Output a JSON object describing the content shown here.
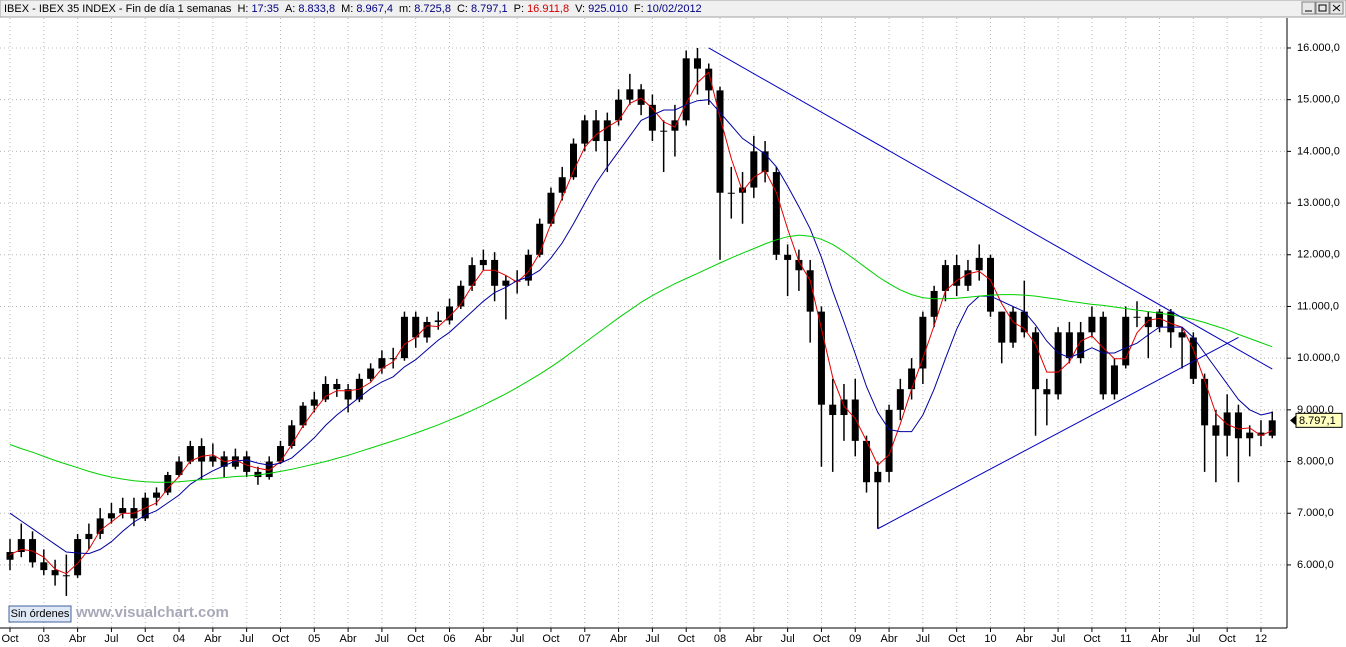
{
  "header": {
    "title": "IBEX - IBEX 35 INDEX - Fin de día 1 semanas",
    "fields": [
      {
        "label": "H:",
        "value": "17:35",
        "color": "#000080"
      },
      {
        "label": "A:",
        "value": "8.833,8",
        "color": "#000080"
      },
      {
        "label": "M:",
        "value": "8.967,4",
        "color": "#000080"
      },
      {
        "label": "m:",
        "value": "8.725,8",
        "color": "#000080"
      },
      {
        "label": "C:",
        "value": "8.797,1",
        "color": "#000080"
      },
      {
        "label": "P:",
        "value": "16.911,8",
        "color": "#d00000"
      },
      {
        "label": "V:",
        "value": "925.010",
        "color": "#000080"
      },
      {
        "label": "F:",
        "value": "10/02/2012",
        "color": "#000080"
      }
    ]
  },
  "footer": {
    "button": "Sin órdenes",
    "watermark": "www.visualchart.com"
  },
  "chart_data": {
    "type": "candlestick",
    "color": "#000000",
    "grid": true,
    "x": [
      "2002-10",
      "2002-11",
      "2002-12",
      "2003-01",
      "2003-02",
      "2003-03",
      "2003-04",
      "2003-05",
      "2003-06",
      "2003-07",
      "2003-08",
      "2003-09",
      "2003-10",
      "2003-11",
      "2003-12",
      "2004-01",
      "2004-02",
      "2004-03",
      "2004-04",
      "2004-05",
      "2004-06",
      "2004-07",
      "2004-08",
      "2004-09",
      "2004-10",
      "2004-11",
      "2004-12",
      "2005-01",
      "2005-02",
      "2005-03",
      "2005-04",
      "2005-05",
      "2005-06",
      "2005-07",
      "2005-08",
      "2005-09",
      "2005-10",
      "2005-11",
      "2005-12",
      "2006-01",
      "2006-02",
      "2006-03",
      "2006-04",
      "2006-05",
      "2006-06",
      "2006-07",
      "2006-08",
      "2006-09",
      "2006-10",
      "2006-11",
      "2006-12",
      "2007-01",
      "2007-02",
      "2007-03",
      "2007-04",
      "2007-05",
      "2007-06",
      "2007-07",
      "2007-08",
      "2007-09",
      "2007-10",
      "2007-11",
      "2007-12",
      "2008-01",
      "2008-02",
      "2008-03",
      "2008-04",
      "2008-05",
      "2008-06",
      "2008-07",
      "2008-08",
      "2008-09",
      "2008-10",
      "2008-11",
      "2008-12",
      "2009-01",
      "2009-02",
      "2009-03",
      "2009-04",
      "2009-05",
      "2009-06",
      "2009-07",
      "2009-08",
      "2009-09",
      "2009-10",
      "2009-11",
      "2009-12",
      "2010-01",
      "2010-02",
      "2010-03",
      "2010-04",
      "2010-05",
      "2010-06",
      "2010-07",
      "2010-08",
      "2010-09",
      "2010-10",
      "2010-11",
      "2010-12",
      "2011-01",
      "2011-02",
      "2011-03",
      "2011-04",
      "2011-05",
      "2011-06",
      "2011-07",
      "2011-08",
      "2011-09",
      "2011-10",
      "2011-11",
      "2011-12",
      "2012-01",
      "2012-02"
    ],
    "open": [
      6100,
      6250,
      6500,
      6050,
      5900,
      5800,
      5800,
      6500,
      6600,
      6900,
      7000,
      7100,
      6900,
      7300,
      7400,
      7740,
      8000,
      8300,
      8000,
      8100,
      7900,
      8100,
      7800,
      7700,
      8000,
      8300,
      8700,
      9080,
      9200,
      9500,
      9400,
      9200,
      9600,
      9800,
      10000,
      10000,
      10800,
      10400,
      10700,
      10730,
      11000,
      11400,
      11800,
      11900,
      11400,
      11500,
      11500,
      12000,
      12600,
      13200,
      13500,
      14150,
      14600,
      14200,
      14600,
      15000,
      15200,
      14900,
      14400,
      14400,
      14600,
      15800,
      15600,
      15180,
      13200,
      13200,
      13300,
      14000,
      13600,
      12000,
      11900,
      11700,
      10900,
      9100,
      8900,
      9200,
      8400,
      7600,
      7800,
      9000,
      9400,
      9800,
      10800,
      11300,
      11800,
      11400,
      11700,
      11940,
      10900,
      10300,
      10900,
      10500,
      9400,
      9300,
      10500,
      10000,
      10500,
      10800,
      9300,
      9860,
      10800,
      10800,
      10600,
      10900,
      10500,
      10400,
      9600,
      8700,
      8500,
      8950,
      8450,
      8560,
      8500
    ],
    "high": [
      6500,
      6800,
      6650,
      6300,
      6100,
      6200,
      6600,
      6800,
      7100,
      7200,
      7300,
      7300,
      7400,
      7500,
      7800,
      8100,
      8400,
      8450,
      8350,
      8200,
      8250,
      8200,
      7900,
      8100,
      8400,
      8800,
      9150,
      9350,
      9650,
      9600,
      9500,
      9700,
      9900,
      10150,
      10200,
      10900,
      10900,
      10800,
      10900,
      11150,
      11500,
      11950,
      12100,
      12050,
      11600,
      11700,
      12100,
      12700,
      13300,
      13700,
      14250,
      14700,
      14800,
      14750,
      15200,
      15500,
      15300,
      15100,
      14600,
      14900,
      15950,
      16000,
      15700,
      15250,
      13700,
      13600,
      14300,
      14200,
      13700,
      12200,
      12100,
      11900,
      11000,
      9600,
      9500,
      9600,
      8500,
      8000,
      9100,
      9600,
      10000,
      10900,
      11400,
      11900,
      12000,
      11900,
      12200,
      12000,
      10900,
      11000,
      11500,
      10600,
      9600,
      10600,
      10700,
      10700,
      11000,
      10900,
      10000,
      11000,
      11100,
      10900,
      10950,
      10950,
      10600,
      10500,
      9700,
      9000,
      9300,
      9100,
      8700,
      8800,
      8968
    ],
    "low": [
      5900,
      6150,
      5950,
      5800,
      5600,
      5400,
      5750,
      6300,
      6500,
      6800,
      6900,
      6750,
      6850,
      7150,
      7350,
      7700,
      7950,
      7650,
      7900,
      7700,
      7850,
      7700,
      7550,
      7650,
      7950,
      8250,
      8650,
      8950,
      9150,
      9250,
      8950,
      9150,
      9550,
      9700,
      9800,
      9950,
      10200,
      10300,
      10550,
      10650,
      10950,
      11300,
      11700,
      11100,
      10750,
      11250,
      11400,
      11950,
      12550,
      13050,
      13450,
      14000,
      14000,
      13600,
      14500,
      14900,
      14700,
      14200,
      13600,
      13900,
      14500,
      15100,
      14900,
      11900,
      12700,
      12600,
      13100,
      13400,
      11900,
      11200,
      11300,
      10300,
      7900,
      7800,
      8400,
      8100,
      7400,
      6700,
      7600,
      8800,
      9200,
      9500,
      10600,
      11100,
      11200,
      11300,
      11500,
      10800,
      9900,
      10200,
      10400,
      8500,
      8700,
      9200,
      9900,
      9900,
      10400,
      9200,
      9200,
      9800,
      10600,
      10000,
      10500,
      10200,
      9800,
      9500,
      7800,
      7600,
      8100,
      7600,
      8100,
      8300,
      8450
    ],
    "close": [
      6250,
      6500,
      6050,
      5900,
      5800,
      5800,
      6500,
      6600,
      6900,
      7000,
      7100,
      6900,
      7300,
      7400,
      7740,
      8000,
      8300,
      8000,
      8100,
      7900,
      8100,
      7800,
      7700,
      8000,
      8300,
      8700,
      9080,
      9200,
      9500,
      9400,
      9200,
      9600,
      9800,
      10000,
      10000,
      10800,
      10400,
      10700,
      10730,
      11000,
      11400,
      11800,
      11900,
      11400,
      11500,
      11500,
      12000,
      12600,
      13200,
      13500,
      14150,
      14600,
      14200,
      14600,
      15000,
      15200,
      14900,
      14400,
      14400,
      14600,
      15800,
      15600,
      15180,
      13200,
      13200,
      13300,
      14000,
      13600,
      12000,
      11900,
      11700,
      10900,
      9100,
      8900,
      9200,
      8400,
      7600,
      7800,
      9000,
      9400,
      9800,
      10800,
      11300,
      11800,
      11400,
      11700,
      11940,
      10900,
      10300,
      10900,
      10500,
      9400,
      9300,
      10500,
      10000,
      10500,
      10800,
      9300,
      9860,
      10800,
      10800,
      10600,
      10900,
      10500,
      10400,
      9600,
      8700,
      8500,
      8950,
      8450,
      8560,
      8500,
      8797
    ],
    "lines": [
      {
        "color": "#e00000",
        "values": [
          6200,
          6300,
          6270,
          6150,
          5920,
          5830,
          6030,
          6300,
          6670,
          6830,
          7000,
          7000,
          7100,
          7200,
          7480,
          7710,
          8010,
          8100,
          8130,
          8000,
          8030,
          7930,
          7870,
          7830,
          8000,
          8330,
          8690,
          8990,
          9260,
          9370,
          9370,
          9400,
          9530,
          9800,
          9930,
          10270,
          10400,
          10630,
          10610,
          10810,
          11040,
          11400,
          11700,
          11700,
          11600,
          11470,
          11670,
          12030,
          12600,
          13100,
          13620,
          14080,
          14320,
          14470,
          14600,
          14930,
          15030,
          14830,
          14570,
          14470,
          14930,
          15330,
          15530,
          14660,
          13860,
          13230,
          13500,
          13630,
          13200,
          12500,
          11870,
          11500,
          10570,
          9630,
          9070,
          8830,
          8400,
          7930,
          8130,
          8730,
          9400,
          10000,
          10630,
          11300,
          11500,
          11630,
          11680,
          11510,
          11050,
          10700,
          10570,
          10270,
          9730,
          9730,
          9930,
          10330,
          10430,
          10200,
          9990,
          9990,
          10490,
          10730,
          10770,
          10670,
          10600,
          10170,
          9570,
          8930,
          8720,
          8630,
          8650,
          8500,
          8600
        ]
      },
      {
        "color": "#0000a0",
        "values": [
          7000,
          6850,
          6700,
          6550,
          6400,
          6250,
          6230,
          6220,
          6300,
          6450,
          6650,
          6830,
          6960,
          7050,
          7200,
          7350,
          7560,
          7700,
          7820,
          7920,
          8010,
          8030,
          7970,
          7930,
          7970,
          8070,
          8260,
          8460,
          8700,
          8900,
          9070,
          9240,
          9410,
          9540,
          9640,
          9830,
          9970,
          10160,
          10350,
          10500,
          10700,
          10900,
          11100,
          11270,
          11370,
          11500,
          11570,
          11700,
          11940,
          12230,
          12600,
          13000,
          13380,
          13700,
          14000,
          14300,
          14600,
          14700,
          14800,
          14800,
          14900,
          14980,
          15000,
          14750,
          14500,
          14250,
          14100,
          13950,
          13700,
          13330,
          12930,
          12500,
          11950,
          11300,
          10700,
          10080,
          9450,
          8950,
          8620,
          8580,
          8580,
          8900,
          9400,
          9990,
          10560,
          11000,
          11200,
          11200,
          11100,
          11000,
          10900,
          10640,
          10330,
          10100,
          10010,
          10100,
          10200,
          10100,
          10100,
          10200,
          10290,
          10450,
          10600,
          10600,
          10600,
          10400,
          10100,
          9800,
          9500,
          9200,
          9000,
          8900,
          8950
        ]
      },
      {
        "color": "#00d000",
        "values": [
          8330,
          8250,
          8180,
          8100,
          8020,
          7950,
          7880,
          7810,
          7750,
          7700,
          7660,
          7630,
          7610,
          7600,
          7600,
          7610,
          7630,
          7650,
          7670,
          7690,
          7710,
          7720,
          7740,
          7770,
          7810,
          7850,
          7900,
          7950,
          8000,
          8060,
          8120,
          8190,
          8260,
          8330,
          8400,
          8470,
          8550,
          8630,
          8710,
          8800,
          8890,
          8990,
          9090,
          9200,
          9310,
          9430,
          9560,
          9690,
          9830,
          9980,
          10140,
          10300,
          10460,
          10620,
          10780,
          10930,
          11080,
          11210,
          11330,
          11440,
          11540,
          11640,
          11740,
          11840,
          11940,
          12030,
          12120,
          12210,
          12290,
          12350,
          12380,
          12360,
          12300,
          12200,
          12060,
          11900,
          11740,
          11580,
          11440,
          11320,
          11230,
          11170,
          11150,
          11150,
          11160,
          11180,
          11200,
          11220,
          11230,
          11230,
          11220,
          11200,
          11170,
          11140,
          11100,
          11070,
          11040,
          11020,
          10990,
          10960,
          10930,
          10900,
          10870,
          10840,
          10800,
          10750,
          10690,
          10620,
          10550,
          10460,
          10380,
          10300,
          10220
        ]
      }
    ],
    "trendlines": [
      {
        "color": "#0000c0",
        "x": [
          "2007-12",
          "2012-02"
        ],
        "y": [
          16000,
          9790
        ]
      },
      {
        "color": "#0000c0",
        "x": [
          "2009-03",
          "2011-11"
        ],
        "y": [
          6700,
          10400
        ]
      }
    ],
    "last_price": {
      "value": 8797.1,
      "label": "8.797,1"
    },
    "ylim": [
      4780,
      16580
    ],
    "yticks": [
      {
        "value": 6000,
        "label": "6.000,0"
      },
      {
        "value": 7000,
        "label": "7.000,0"
      },
      {
        "value": 8000,
        "label": "8.000,0"
      },
      {
        "value": 9000,
        "label": "9.000,0"
      },
      {
        "value": 10000,
        "label": "10.000,0"
      },
      {
        "value": 11000,
        "label": "11.000,0"
      },
      {
        "value": 12000,
        "label": "12.000,0"
      },
      {
        "value": 13000,
        "label": "13.000,0"
      },
      {
        "value": 14000,
        "label": "14.000,0"
      },
      {
        "value": 15000,
        "label": "15.000,0"
      },
      {
        "value": 16000,
        "label": "16.000,0"
      }
    ],
    "xticks": [
      {
        "value": "2002-10",
        "label": "Oct"
      },
      {
        "value": "2003-01",
        "label": "03"
      },
      {
        "value": "2003-04",
        "label": "Abr"
      },
      {
        "value": "2003-07",
        "label": "Jul"
      },
      {
        "value": "2003-10",
        "label": "Oct"
      },
      {
        "value": "2004-01",
        "label": "04"
      },
      {
        "value": "2004-04",
        "label": "Abr"
      },
      {
        "value": "2004-07",
        "label": "Jul"
      },
      {
        "value": "2004-10",
        "label": "Oct"
      },
      {
        "value": "2005-01",
        "label": "05"
      },
      {
        "value": "2005-04",
        "label": "Abr"
      },
      {
        "value": "2005-07",
        "label": "Jul"
      },
      {
        "value": "2005-10",
        "label": "Oct"
      },
      {
        "value": "2006-01",
        "label": "06"
      },
      {
        "value": "2006-04",
        "label": "Abr"
      },
      {
        "value": "2006-07",
        "label": "Jul"
      },
      {
        "value": "2006-10",
        "label": "Oct"
      },
      {
        "value": "2007-01",
        "label": "07"
      },
      {
        "value": "2007-04",
        "label": "Abr"
      },
      {
        "value": "2007-07",
        "label": "Jul"
      },
      {
        "value": "2007-10",
        "label": "Oct"
      },
      {
        "value": "2008-01",
        "label": "08"
      },
      {
        "value": "2008-04",
        "label": "Abr"
      },
      {
        "value": "2008-07",
        "label": "Jul"
      },
      {
        "value": "2008-10",
        "label": "Oct"
      },
      {
        "value": "2009-01",
        "label": "09"
      },
      {
        "value": "2009-04",
        "label": "Abr"
      },
      {
        "value": "2009-07",
        "label": "Jul"
      },
      {
        "value": "2009-10",
        "label": "Oct"
      },
      {
        "value": "2010-01",
        "label": "10"
      },
      {
        "value": "2010-04",
        "label": "Abr"
      },
      {
        "value": "2010-07",
        "label": "Jul"
      },
      {
        "value": "2010-10",
        "label": "Oct"
      },
      {
        "value": "2011-01",
        "label": "11"
      },
      {
        "value": "2011-04",
        "label": "Abr"
      },
      {
        "value": "2011-07",
        "label": "Jul"
      },
      {
        "value": "2011-10",
        "label": "Oct"
      },
      {
        "value": "2012-01",
        "label": "12"
      }
    ]
  }
}
